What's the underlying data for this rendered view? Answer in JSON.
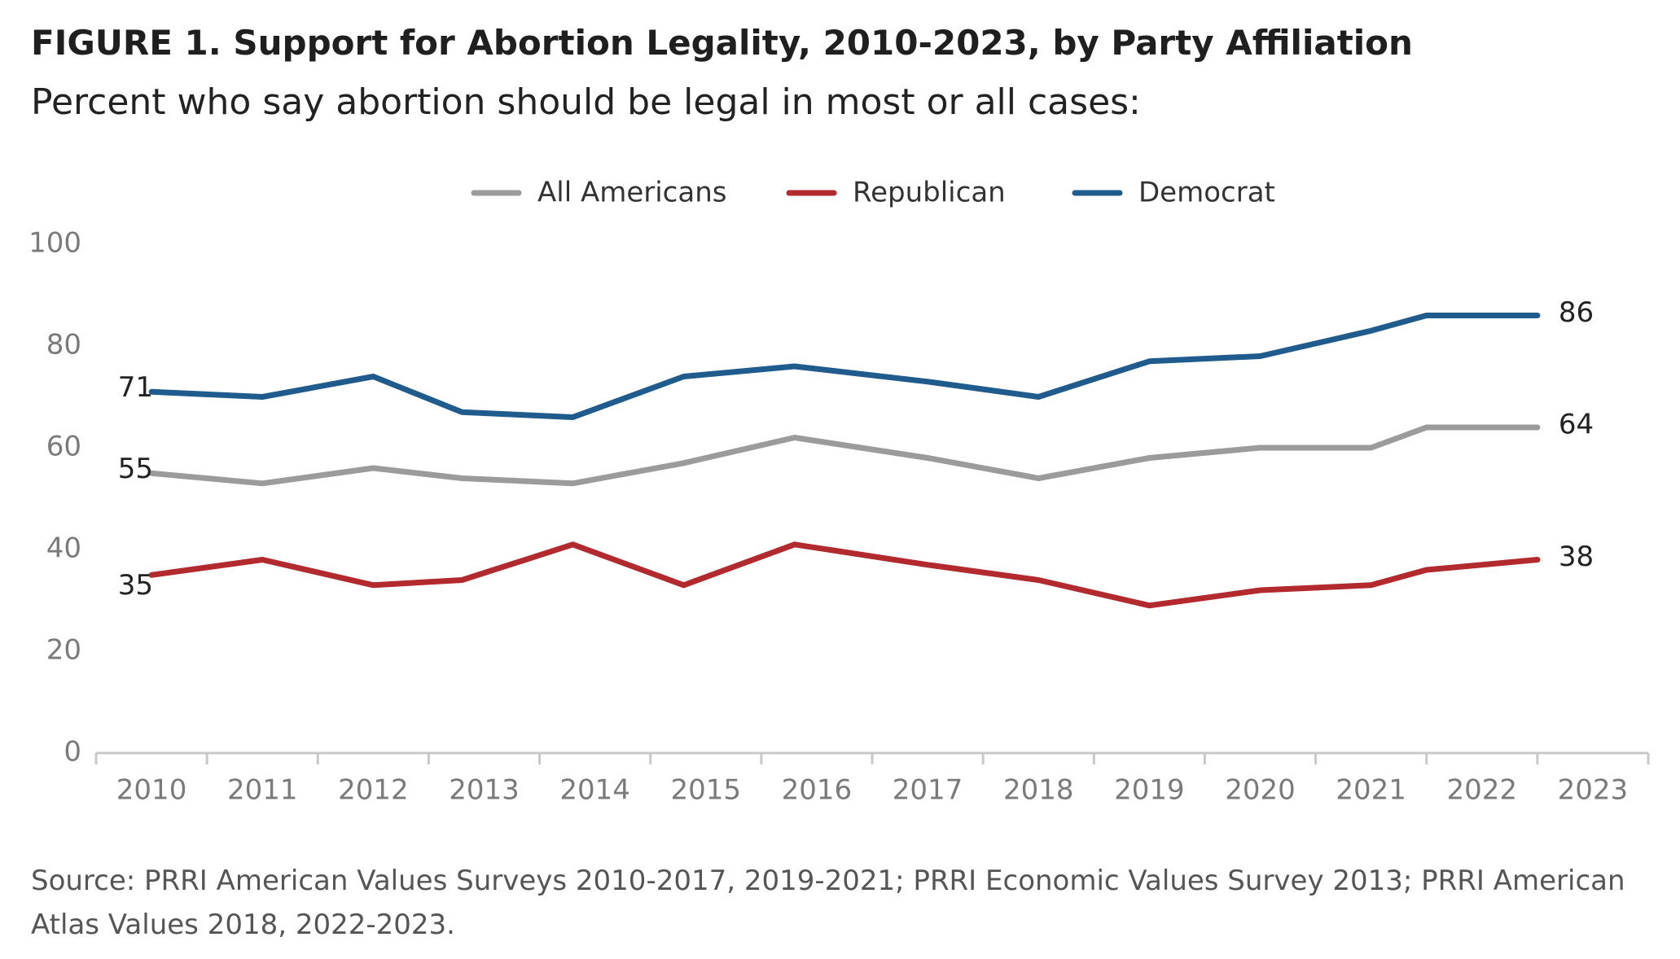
{
  "title": "FIGURE 1.  Support for Abortion Legality, 2010-2023, by Party Affiliation",
  "subtitle": "Percent who say abortion should be legal in most or all cases:",
  "source": "Source: PRRI American Values Surveys 2010-2017, 2019-2021; PRRI Economic Values Survey 2013; PRRI American Atlas Values 2018, 2022-2023.",
  "chart_data": {
    "type": "line",
    "title": "",
    "xlabel": "",
    "ylabel": "",
    "x": [
      "2010",
      "2011",
      "2012",
      "2013",
      "2014",
      "2015",
      "2016",
      "2017",
      "2018",
      "2019",
      "2020",
      "2021",
      "2022",
      "2023"
    ],
    "ylim": [
      0,
      100
    ],
    "yticks": [
      0,
      20,
      40,
      60,
      80,
      100
    ],
    "grid": false,
    "legend_position": "top-center",
    "series": [
      {
        "name": "All Americans",
        "color": "#9b9b9b",
        "x_positions": [
          0,
          1,
          2,
          2.8,
          3.8,
          4.8,
          5.8,
          7,
          8,
          9,
          10,
          11,
          11.5,
          12.5
        ],
        "values": [
          55,
          53,
          56,
          54,
          53,
          57,
          62,
          58,
          54,
          58,
          60,
          60,
          64,
          64
        ],
        "start_label": "55",
        "end_label": "64"
      },
      {
        "name": "Republican",
        "color": "#b22a2e",
        "x_positions": [
          0,
          1,
          2,
          2.8,
          3.8,
          4.8,
          5.8,
          7,
          8,
          9,
          10,
          11,
          11.5,
          12.5
        ],
        "values": [
          35,
          38,
          33,
          34,
          41,
          33,
          41,
          37,
          34,
          29,
          32,
          33,
          36,
          38
        ],
        "start_label": "35",
        "end_label": "38"
      },
      {
        "name": "Democrat",
        "color": "#1f5b8c",
        "x_positions": [
          0,
          1,
          2,
          2.8,
          3.8,
          4.8,
          5.8,
          7,
          8,
          9,
          10,
          11,
          11.5,
          12.5
        ],
        "values": [
          71,
          70,
          74,
          67,
          66,
          74,
          76,
          73,
          70,
          77,
          78,
          83,
          86,
          86
        ],
        "start_label": "71",
        "end_label": "86"
      }
    ]
  }
}
